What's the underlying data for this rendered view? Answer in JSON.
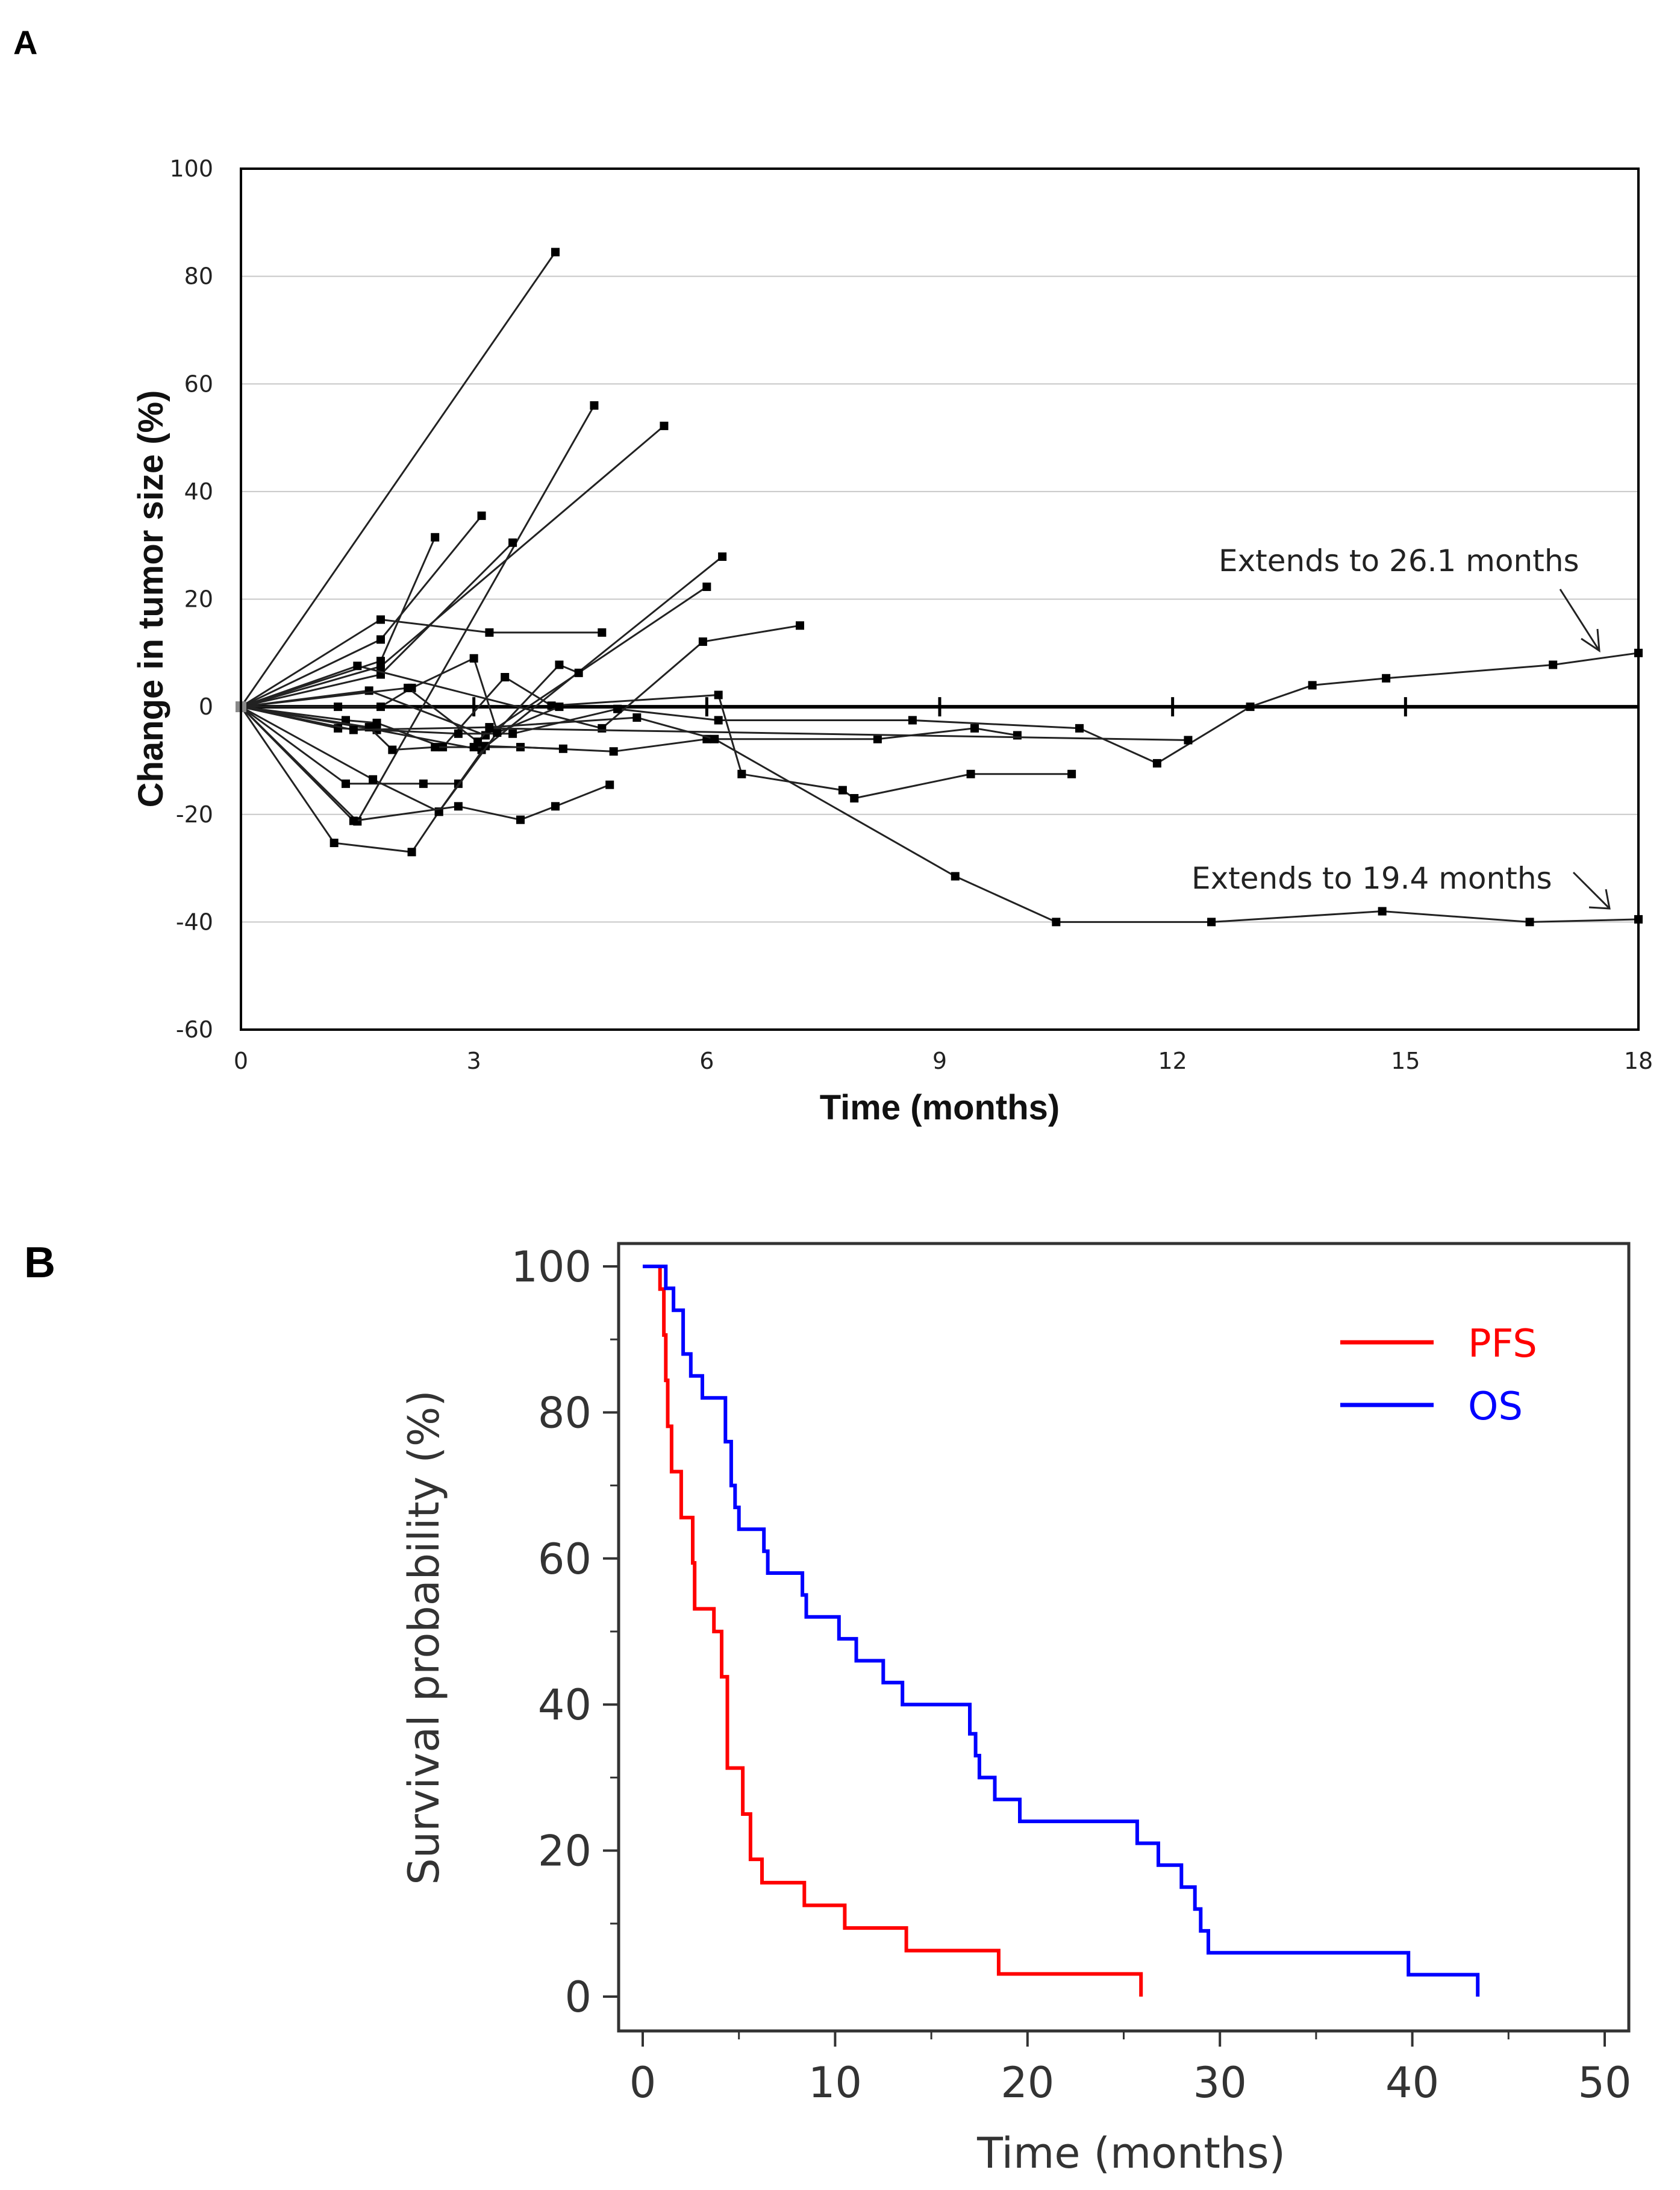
{
  "panels": {
    "a": "A",
    "b": "B"
  },
  "chart_data": [
    {
      "type": "line",
      "panel": "A",
      "title": "",
      "xlabel": "Time (months)",
      "ylabel": "Change in tumor size (%)",
      "xlim": [
        0,
        18
      ],
      "ylim": [
        -60,
        100
      ],
      "xticks": [
        "0",
        "3",
        "6",
        "9",
        "12",
        "15",
        "18"
      ],
      "yticks": [
        "100",
        "80",
        "60",
        "40",
        "20",
        "0",
        "-20",
        "-40",
        "-60"
      ],
      "grid": true,
      "annotations": [
        {
          "text": "Extends to 26.1 months",
          "x": 12.7,
          "y": 26,
          "arrow_to": [
            17.8,
            10
          ]
        },
        {
          "text": "Extends to 19.4 months",
          "x": 12.3,
          "y": -32,
          "arrow_to": [
            17.8,
            -38
          ]
        }
      ],
      "series": [
        {
          "x": [
            0,
            4.05
          ],
          "y": [
            0,
            84.5
          ]
        },
        {
          "x": [
            0,
            1.5,
            4.55
          ],
          "y": [
            0,
            -21.3,
            56
          ]
        },
        {
          "x": [
            0,
            1.8,
            5.45
          ],
          "y": [
            0,
            7.5,
            52.2
          ]
        },
        {
          "x": [
            0,
            1.8,
            2.5
          ],
          "y": [
            0,
            8.5,
            31.5
          ]
        },
        {
          "x": [
            0,
            1.8,
            3.1
          ],
          "y": [
            0,
            12.5,
            35.5
          ]
        },
        {
          "x": [
            0,
            1.8,
            3.5
          ],
          "y": [
            0,
            6,
            30.5
          ]
        },
        {
          "x": [
            0,
            1.75,
            3.1,
            6.2
          ],
          "y": [
            0,
            -4.3,
            -8,
            27.9
          ]
        },
        {
          "x": [
            0,
            1.65,
            3.15,
            6.0
          ],
          "y": [
            0,
            3,
            -5.3,
            22.3
          ]
        },
        {
          "x": [
            0,
            1.5,
            4.65,
            5.95,
            7.2
          ],
          "y": [
            0,
            7.6,
            -4,
            12.1,
            15.1
          ]
        },
        {
          "x": [
            0,
            1.8,
            3.2,
            4.65
          ],
          "y": [
            0,
            16.2,
            13.8,
            13.8
          ]
        },
        {
          "x": [
            0,
            1.25,
            1.8,
            2.2,
            3.0,
            3.3,
            4.1,
            4.35
          ],
          "y": [
            0,
            0,
            0,
            3.5,
            9,
            -4.5,
            7.8,
            6.3
          ]
        },
        {
          "x": [
            0,
            1.35,
            1.75,
            2.6,
            3.4,
            4.0,
            6.15,
            6.45,
            7.75,
            7.9,
            9.4,
            10.7
          ],
          "y": [
            0,
            -2.5,
            -3,
            -7.5,
            5.5,
            0.2,
            2.2,
            -12.5,
            -15.5,
            -17,
            -12.5,
            -12.5
          ]
        },
        {
          "x": [
            0,
            1.65,
            1.95,
            2.5,
            3.0,
            3.6,
            4.8,
            6.0,
            8.2,
            9.45,
            10.0
          ],
          "y": [
            0,
            -3.8,
            -8,
            -7.5,
            -7.5,
            -7.5,
            -8.3,
            -6,
            -6,
            -4,
            -5.3
          ]
        },
        {
          "x": [
            0,
            1.25,
            2.8,
            3.5,
            4.85,
            6.15,
            8.65,
            10.8,
            11.8,
            13.0,
            13.8,
            14.75,
            16.9,
            18.0
          ],
          "y": [
            0,
            -4,
            -5,
            -5,
            -0.4,
            -2.5,
            -2.5,
            -4,
            -10.5,
            0,
            4,
            5.3,
            7.8,
            10
          ]
        },
        {
          "x": [
            0,
            1.45,
            3.2,
            5.1,
            6.1,
            9.2,
            10.5,
            12.5,
            14.7,
            16.6,
            18.0
          ],
          "y": [
            0,
            -4.3,
            -3.8,
            -2,
            -6,
            -31.5,
            -40,
            -40,
            -38,
            -40,
            -39.5
          ]
        },
        {
          "x": [
            0,
            1.35,
            2.35,
            2.8
          ],
          "y": [
            0,
            -14.3,
            -14.3,
            -14.3
          ]
        },
        {
          "x": [
            0,
            1.7,
            2.55,
            3.15,
            4.15
          ],
          "y": [
            0,
            -13.5,
            -19.5,
            -7.3,
            -7.8
          ]
        },
        {
          "x": [
            0,
            1.2,
            2.2,
            2.55,
            3.3,
            4.1
          ],
          "y": [
            0,
            -25.3,
            -27,
            -19.5,
            -4.8,
            0
          ]
        },
        {
          "x": [
            0,
            1.45,
            2.8,
            3.6,
            4.05,
            4.75
          ],
          "y": [
            0,
            -21.2,
            -18.5,
            -21,
            -18.5,
            -14.5
          ]
        },
        {
          "x": [
            0,
            2.15,
            3.05,
            3.2,
            12.2
          ],
          "y": [
            0,
            3.5,
            -6.5,
            -4,
            -6.2
          ]
        }
      ]
    },
    {
      "type": "line",
      "panel": "B",
      "title": "",
      "xlabel": "Time (months)",
      "ylabel": "Survival probability (%)",
      "xlim": [
        0,
        50
      ],
      "ylim": [
        0,
        100
      ],
      "xticks": [
        "0",
        "10",
        "20",
        "30",
        "40",
        "50"
      ],
      "yticks": [
        "100",
        "80",
        "60",
        "40",
        "20",
        "0"
      ],
      "grid": false,
      "legend": "top-right",
      "series": [
        {
          "name": "PFS",
          "color": "#ff0000",
          "step": true,
          "x": [
            0,
            0.6,
            0.9,
            1.1,
            1.2,
            1.3,
            1.5,
            1.6,
            2.0,
            2.4,
            2.6,
            2.7,
            3.0,
            3.7,
            4.1,
            4.4,
            5.2,
            5.4,
            5.6,
            6.2,
            8.4,
            10.5,
            13.7,
            18.5,
            25.9,
            25.9
          ],
          "y": [
            100,
            100,
            96.9,
            90.6,
            84.4,
            78.1,
            71.9,
            71.9,
            65.6,
            65.6,
            59.4,
            53.1,
            53.1,
            50,
            43.8,
            31.3,
            25,
            25,
            18.8,
            15.6,
            12.5,
            9.4,
            6.3,
            3.1,
            3.1,
            0
          ]
        },
        {
          "name": "OS",
          "color": "#0000ff",
          "step": true,
          "x": [
            0,
            0.7,
            1.2,
            1.6,
            2.1,
            2.5,
            3.1,
            3.9,
            4.3,
            4.6,
            4.8,
            5.0,
            6.3,
            6.5,
            8.3,
            8.5,
            10.2,
            11.1,
            12.5,
            13.5,
            17.0,
            17.3,
            17.5,
            17.8,
            18.3,
            19.6,
            25.7,
            26.8,
            28.0,
            28.7,
            29.0,
            29.4,
            29.6,
            39.8,
            43.4,
            43.4
          ],
          "y": [
            100,
            100,
            97,
            94,
            88,
            85,
            82,
            82,
            76,
            70,
            67,
            64,
            61,
            58,
            55,
            52,
            49,
            46,
            43,
            40,
            36,
            33,
            30,
            30,
            27,
            24,
            21,
            18,
            15,
            12,
            9,
            6,
            6,
            3,
            3,
            0
          ]
        }
      ]
    }
  ]
}
